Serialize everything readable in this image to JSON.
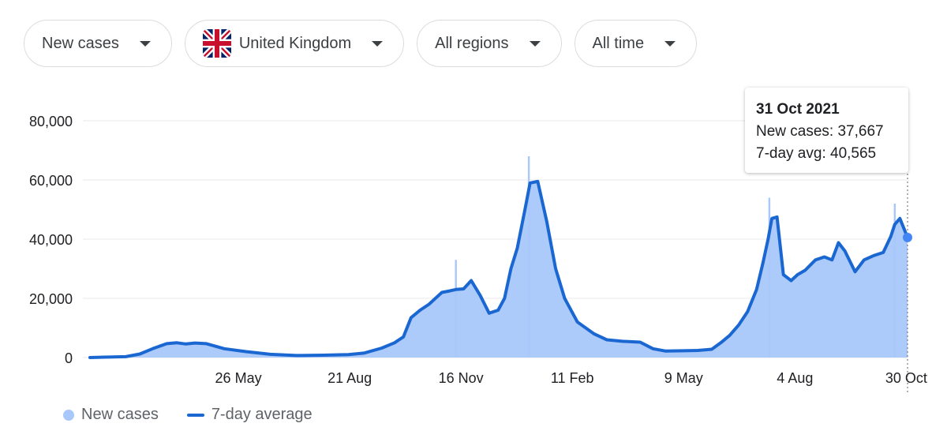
{
  "filters": {
    "metric": "New cases",
    "location": "United Kingdom",
    "region": "All regions",
    "period": "All time"
  },
  "tooltip": {
    "date": "31 Oct 2021",
    "new_cases_label": "New cases:",
    "new_cases_value": "37,667",
    "avg_label": "7-day avg:",
    "avg_value": "40,565"
  },
  "legend": {
    "new_cases": "New cases",
    "avg": "7-day average"
  },
  "colors": {
    "bars": "#a8c7fa",
    "line": "#1a67d2",
    "grid": "#e8eaed"
  },
  "chart_data": {
    "type": "area",
    "ylim": [
      0,
      80000
    ],
    "yticks": [
      0,
      20000,
      40000,
      60000,
      80000
    ],
    "ytick_labels": [
      "0",
      "20,000",
      "40,000",
      "60,000",
      "80,000"
    ],
    "xlim": [
      "2020-01-31",
      "2021-10-31"
    ],
    "xticks": [
      "2020-05-26",
      "2020-08-21",
      "2020-11-16",
      "2021-02-11",
      "2021-05-09",
      "2021-08-04",
      "2021-10-30"
    ],
    "xtick_labels": [
      "26 May",
      "21 Aug",
      "16 Nov",
      "11 Feb",
      "9 May",
      "4 Aug",
      "30 Oct"
    ],
    "series": [
      {
        "name": "7-day average",
        "x": [
          "2020-01-31",
          "2020-02-28",
          "2020-03-10",
          "2020-03-20",
          "2020-03-31",
          "2020-04-08",
          "2020-04-15",
          "2020-04-22",
          "2020-05-01",
          "2020-05-15",
          "2020-06-01",
          "2020-06-20",
          "2020-07-10",
          "2020-07-31",
          "2020-08-20",
          "2020-09-01",
          "2020-09-15",
          "2020-09-25",
          "2020-10-02",
          "2020-10-08",
          "2020-10-15",
          "2020-10-22",
          "2020-11-01",
          "2020-11-07",
          "2020-11-12",
          "2020-11-18",
          "2020-11-24",
          "2020-12-01",
          "2020-12-08",
          "2020-12-15",
          "2020-12-20",
          "2020-12-25",
          "2020-12-30",
          "2021-01-05",
          "2021-01-09",
          "2021-01-15",
          "2021-01-22",
          "2021-01-29",
          "2021-02-05",
          "2021-02-15",
          "2021-02-28",
          "2021-03-10",
          "2021-03-22",
          "2021-04-05",
          "2021-04-15",
          "2021-04-25",
          "2021-05-09",
          "2021-05-20",
          "2021-05-31",
          "2021-06-07",
          "2021-06-14",
          "2021-06-21",
          "2021-06-28",
          "2021-07-05",
          "2021-07-10",
          "2021-07-14",
          "2021-07-17",
          "2021-07-21",
          "2021-07-26",
          "2021-08-01",
          "2021-08-06",
          "2021-08-12",
          "2021-08-20",
          "2021-08-27",
          "2021-09-02",
          "2021-09-07",
          "2021-09-12",
          "2021-09-20",
          "2021-09-27",
          "2021-10-05",
          "2021-10-12",
          "2021-10-18",
          "2021-10-21",
          "2021-10-25",
          "2021-10-31"
        ],
        "values": [
          0,
          300,
          1200,
          3000,
          4700,
          5000,
          4600,
          4900,
          4700,
          3000,
          2000,
          1100,
          700,
          800,
          1000,
          1500,
          3200,
          5000,
          7000,
          13500,
          16000,
          18000,
          22000,
          22500,
          23000,
          23200,
          26000,
          21000,
          15000,
          16000,
          20000,
          30000,
          37000,
          50000,
          59000,
          59500,
          46000,
          30000,
          20000,
          12000,
          8000,
          6000,
          5500,
          5200,
          3000,
          2200,
          2300,
          2400,
          2800,
          5000,
          7500,
          11000,
          15500,
          23000,
          32000,
          40000,
          47000,
          47500,
          28000,
          26000,
          28000,
          29500,
          33000,
          34000,
          33000,
          38800,
          36000,
          29000,
          33000,
          34500,
          35500,
          41000,
          45000,
          47000,
          40565
        ]
      }
    ],
    "bars_note_peak_values": [
      {
        "x": "2020-11-12",
        "value": 33000
      },
      {
        "x": "2021-01-08",
        "value": 68000
      },
      {
        "x": "2021-07-15",
        "value": 54000
      },
      {
        "x": "2021-10-21",
        "value": 52000
      }
    ]
  }
}
